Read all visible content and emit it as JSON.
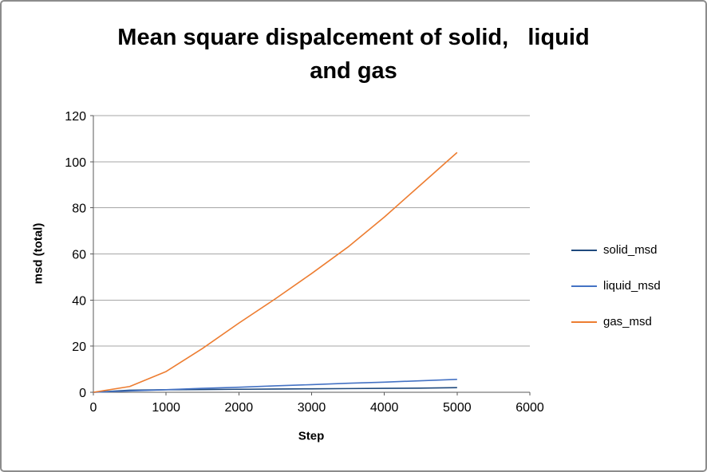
{
  "chart_data": {
    "type": "line",
    "title": "Mean square dispalcement of solid,   liquid\nand gas",
    "xlabel": "Step",
    "ylabel": "msd (total)",
    "xlim": [
      0,
      6000
    ],
    "ylim": [
      0,
      120
    ],
    "xticks": [
      0,
      1000,
      2000,
      3000,
      4000,
      5000,
      6000
    ],
    "yticks": [
      0,
      20,
      40,
      60,
      80,
      100,
      120
    ],
    "grid": "horizontal",
    "legend_position": "right",
    "x": [
      0,
      500,
      1000,
      1500,
      2000,
      2500,
      3000,
      3500,
      4000,
      4500,
      5000
    ],
    "series": [
      {
        "name": "solid_msd",
        "color": "#1F497D",
        "values": [
          0,
          0.9,
          1.1,
          1.2,
          1.3,
          1.4,
          1.5,
          1.6,
          1.7,
          1.8,
          2.0
        ]
      },
      {
        "name": "liquid_msd",
        "color": "#4472C4",
        "values": [
          0,
          0.6,
          1.1,
          1.7,
          2.2,
          2.8,
          3.3,
          3.9,
          4.4,
          5.0,
          5.6
        ]
      },
      {
        "name": "gas_msd",
        "color": "#ED7D31",
        "values": [
          0,
          2.5,
          9,
          19,
          30,
          40.5,
          51.5,
          63,
          76,
          90,
          104
        ]
      }
    ],
    "axis_color": "#595959",
    "gridline_color": "#A6A6A6"
  }
}
